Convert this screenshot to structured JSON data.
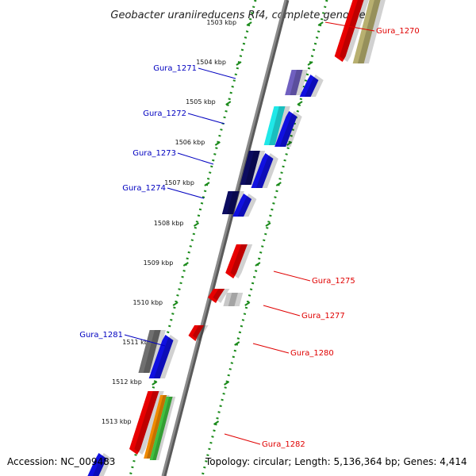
{
  "title": "Geobacter uraniireducens Rf4, complete genome",
  "footer": {
    "accession": "Accession: NC_009483",
    "stats": "Topology: circular; Length: 5,136,364 bp; Genes: 4,414"
  },
  "ticks": [
    "1503 kbp",
    "1504 kbp",
    "1505 kbp",
    "1506 kbp",
    "1507 kbp",
    "1508 kbp",
    "1509 kbp",
    "1510 kbp",
    "1511 kbp",
    "1512 kbp",
    "1513 kbp"
  ],
  "gene_labels": [
    "Gura_1270",
    "Gura_1271",
    "Gura_1272",
    "Gura_1273",
    "Gura_1274",
    "Gura_1275",
    "Gura_1277",
    "Gura_1280",
    "Gura_1281",
    "Gura_1282"
  ],
  "colors": {
    "backbone": "#8a8a8a",
    "dots": "#1a8a1a",
    "forward_cds": "#1010e0",
    "reverse_cds": "#e80000",
    "olive": "#b8b070",
    "purple": "#7060c0",
    "cyan": "#20e8e8",
    "navy": "#0c0c60",
    "gray": "#707070",
    "light_gray": "#c8c8c8",
    "orange": "#f08a00",
    "green": "#40c040",
    "left_label": "#0000c0",
    "right_label": "#e00000"
  }
}
